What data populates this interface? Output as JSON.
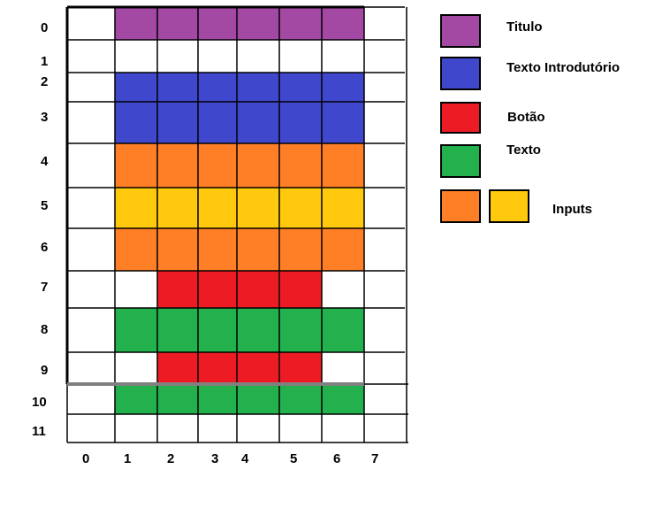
{
  "row_labels": [
    "0",
    "1",
    "2",
    "3",
    "4",
    "5",
    "6",
    "7",
    "8",
    "9",
    "10",
    "11"
  ],
  "col_labels": [
    "0",
    "1",
    "2",
    "3",
    "4",
    "5",
    "6",
    "7"
  ],
  "colors": {
    "purple": "#a349a4",
    "blue": "#3f48cc",
    "red": "#ed1c24",
    "green": "#22b14c",
    "orange": "#ff7f27",
    "yellow": "#ffc90e",
    "grid": "#000000"
  },
  "blocks": [
    {
      "name": "titulo-block",
      "color": "purple",
      "row": 0,
      "rows": 1,
      "col": 1,
      "cols": 6
    },
    {
      "name": "texto-introdutorio-block",
      "color": "blue",
      "row": 2,
      "rows": 2,
      "col": 1,
      "cols": 6
    },
    {
      "name": "input-block-1",
      "color": "orange",
      "row": 4,
      "rows": 1,
      "col": 1,
      "cols": 6
    },
    {
      "name": "input-block-2",
      "color": "yellow",
      "row": 5,
      "rows": 1,
      "col": 1,
      "cols": 6
    },
    {
      "name": "input-block-3",
      "color": "orange",
      "row": 6,
      "rows": 1,
      "col": 1,
      "cols": 6
    },
    {
      "name": "botao-block-1",
      "color": "red",
      "row": 7,
      "rows": 1,
      "col": 2,
      "cols": 4
    },
    {
      "name": "texto-block-1",
      "color": "green",
      "row": 8,
      "rows": 1,
      "col": 1,
      "cols": 6
    },
    {
      "name": "botao-block-2",
      "color": "red",
      "row": 9,
      "rows": 1,
      "col": 2,
      "cols": 4
    },
    {
      "name": "texto-block-2",
      "color": "green",
      "row": 10,
      "rows": 1,
      "col": 1,
      "cols": 6
    }
  ],
  "legend": [
    {
      "label": "Titulo",
      "colors": [
        "purple"
      ]
    },
    {
      "label": "Texto Introdutório",
      "colors": [
        "blue"
      ]
    },
    {
      "label": "Botão",
      "colors": [
        "red"
      ]
    },
    {
      "label": "Texto",
      "colors": [
        "green"
      ]
    },
    {
      "label": "Inputs",
      "colors": [
        "orange",
        "yellow"
      ]
    }
  ]
}
